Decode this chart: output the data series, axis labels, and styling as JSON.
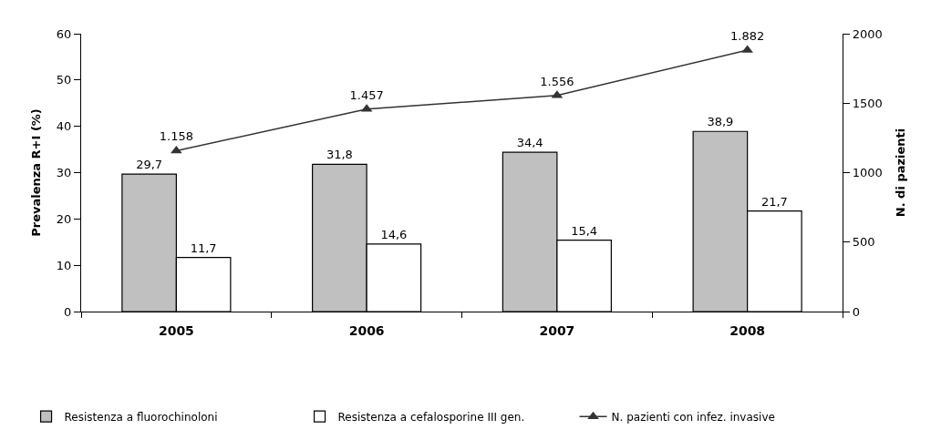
{
  "chart_data": {
    "type": "bar",
    "categories": [
      "2005",
      "2006",
      "2007",
      "2008"
    ],
    "ylabel": "Prevalenza R+I (%)",
    "y2label": "N. di pazienti",
    "ylim": [
      0,
      60
    ],
    "yticks": [
      0,
      10,
      20,
      30,
      40,
      50,
      60
    ],
    "y2lim": [
      0,
      2000
    ],
    "y2ticks": [
      0,
      500,
      1000,
      1500,
      2000
    ],
    "series": [
      {
        "name": "Resistenza a fluorochinoloni",
        "color": "#c0c0c0",
        "values": [
          29.7,
          31.8,
          34.4,
          38.9
        ],
        "value_labels": [
          "29,7",
          "31,8",
          "34,4",
          "38,9"
        ]
      },
      {
        "name": "Resistenza a cefalosporine III gen.",
        "color": "#ffffff",
        "values": [
          11.7,
          14.6,
          15.4,
          21.7
        ],
        "value_labels": [
          "11,7",
          "14,6",
          "15,4",
          "21,7"
        ]
      },
      {
        "name": "N. pazienti con infez. invasive",
        "type": "line",
        "axis": "y2",
        "color": "#333333",
        "values": [
          1158,
          1457,
          1556,
          1882
        ],
        "value_labels": [
          "1.158",
          "1.457",
          "1.556",
          "1.882"
        ]
      }
    ],
    "marker": "triangle",
    "legend": "bottom"
  }
}
